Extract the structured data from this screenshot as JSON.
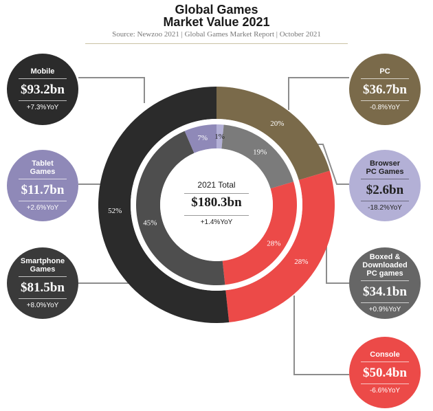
{
  "header": {
    "title_line1": "Global Games",
    "title_line2": "Market Value 2021",
    "source": "Source: Newzoo 2021 | Global Games Market Report | October 2021"
  },
  "center": {
    "title": "2021 Total",
    "value": "$180.3bn",
    "yoy": "+1.4%YoY"
  },
  "bubbles": {
    "mobile": {
      "label": "Mobile",
      "value": "$93.2bn",
      "yoy": "+7.3%YoY",
      "color": "#2b2b2b"
    },
    "tablet": {
      "label": "Tablet Games",
      "value": "$11.7bn",
      "yoy": "+2.6%YoY",
      "color": "#8f89b8"
    },
    "smartphone": {
      "label": "Smartphone Games",
      "value": "$81.5bn",
      "yoy": "+8.0%YoY",
      "color": "#3a3a3a"
    },
    "pc": {
      "label": "PC",
      "value": "$36.7bn",
      "yoy": "-0.8%YoY",
      "color": "#7a6a4a"
    },
    "browser": {
      "label": "Browser PC Games",
      "value": "$2.6bn",
      "yoy": "-18.2%YoY",
      "color": "#b3b0d6"
    },
    "boxed": {
      "label": "Boxed & Downloaded PC games",
      "value": "$34.1bn",
      "yoy": "+0.9%YoY",
      "color": "#666666"
    },
    "console": {
      "label": "Console",
      "value": "$50.4bn",
      "yoy": "-6.6%YoY",
      "color": "#ec4a48"
    }
  },
  "chart_data": {
    "type": "pie",
    "donut": true,
    "title": "Global Games Market Value 2021",
    "subtitle": "Source: Newzoo 2021 | Global Games Market Report | October 2021",
    "total": 180.3,
    "outer_ring": [
      {
        "name": "PC",
        "value": 36.7,
        "pct_label": "20%",
        "color": "#7a6a4a"
      },
      {
        "name": "Console",
        "value": 50.4,
        "pct_label": "28%",
        "color": "#ec4a48"
      },
      {
        "name": "Mobile",
        "value": 93.2,
        "pct_label": "52%",
        "color": "#2b2b2b"
      }
    ],
    "inner_ring": [
      {
        "name": "Browser PC Games",
        "value": 2.6,
        "pct_label": "1%",
        "color": "#b3b0d6"
      },
      {
        "name": "Boxed & Downloaded PC games",
        "value": 34.1,
        "pct_label": "19%",
        "color": "#7b7b7b"
      },
      {
        "name": "Console",
        "value": 50.4,
        "pct_label": "28%",
        "color": "#ec4a48"
      },
      {
        "name": "Smartphone Games",
        "value": 81.5,
        "pct_label": "45%",
        "color": "#4e4e4e"
      },
      {
        "name": "Tablet Games",
        "value": 11.7,
        "pct_label": "7%",
        "color": "#8f89b8"
      }
    ],
    "connector_color": "#8c8c8c"
  }
}
